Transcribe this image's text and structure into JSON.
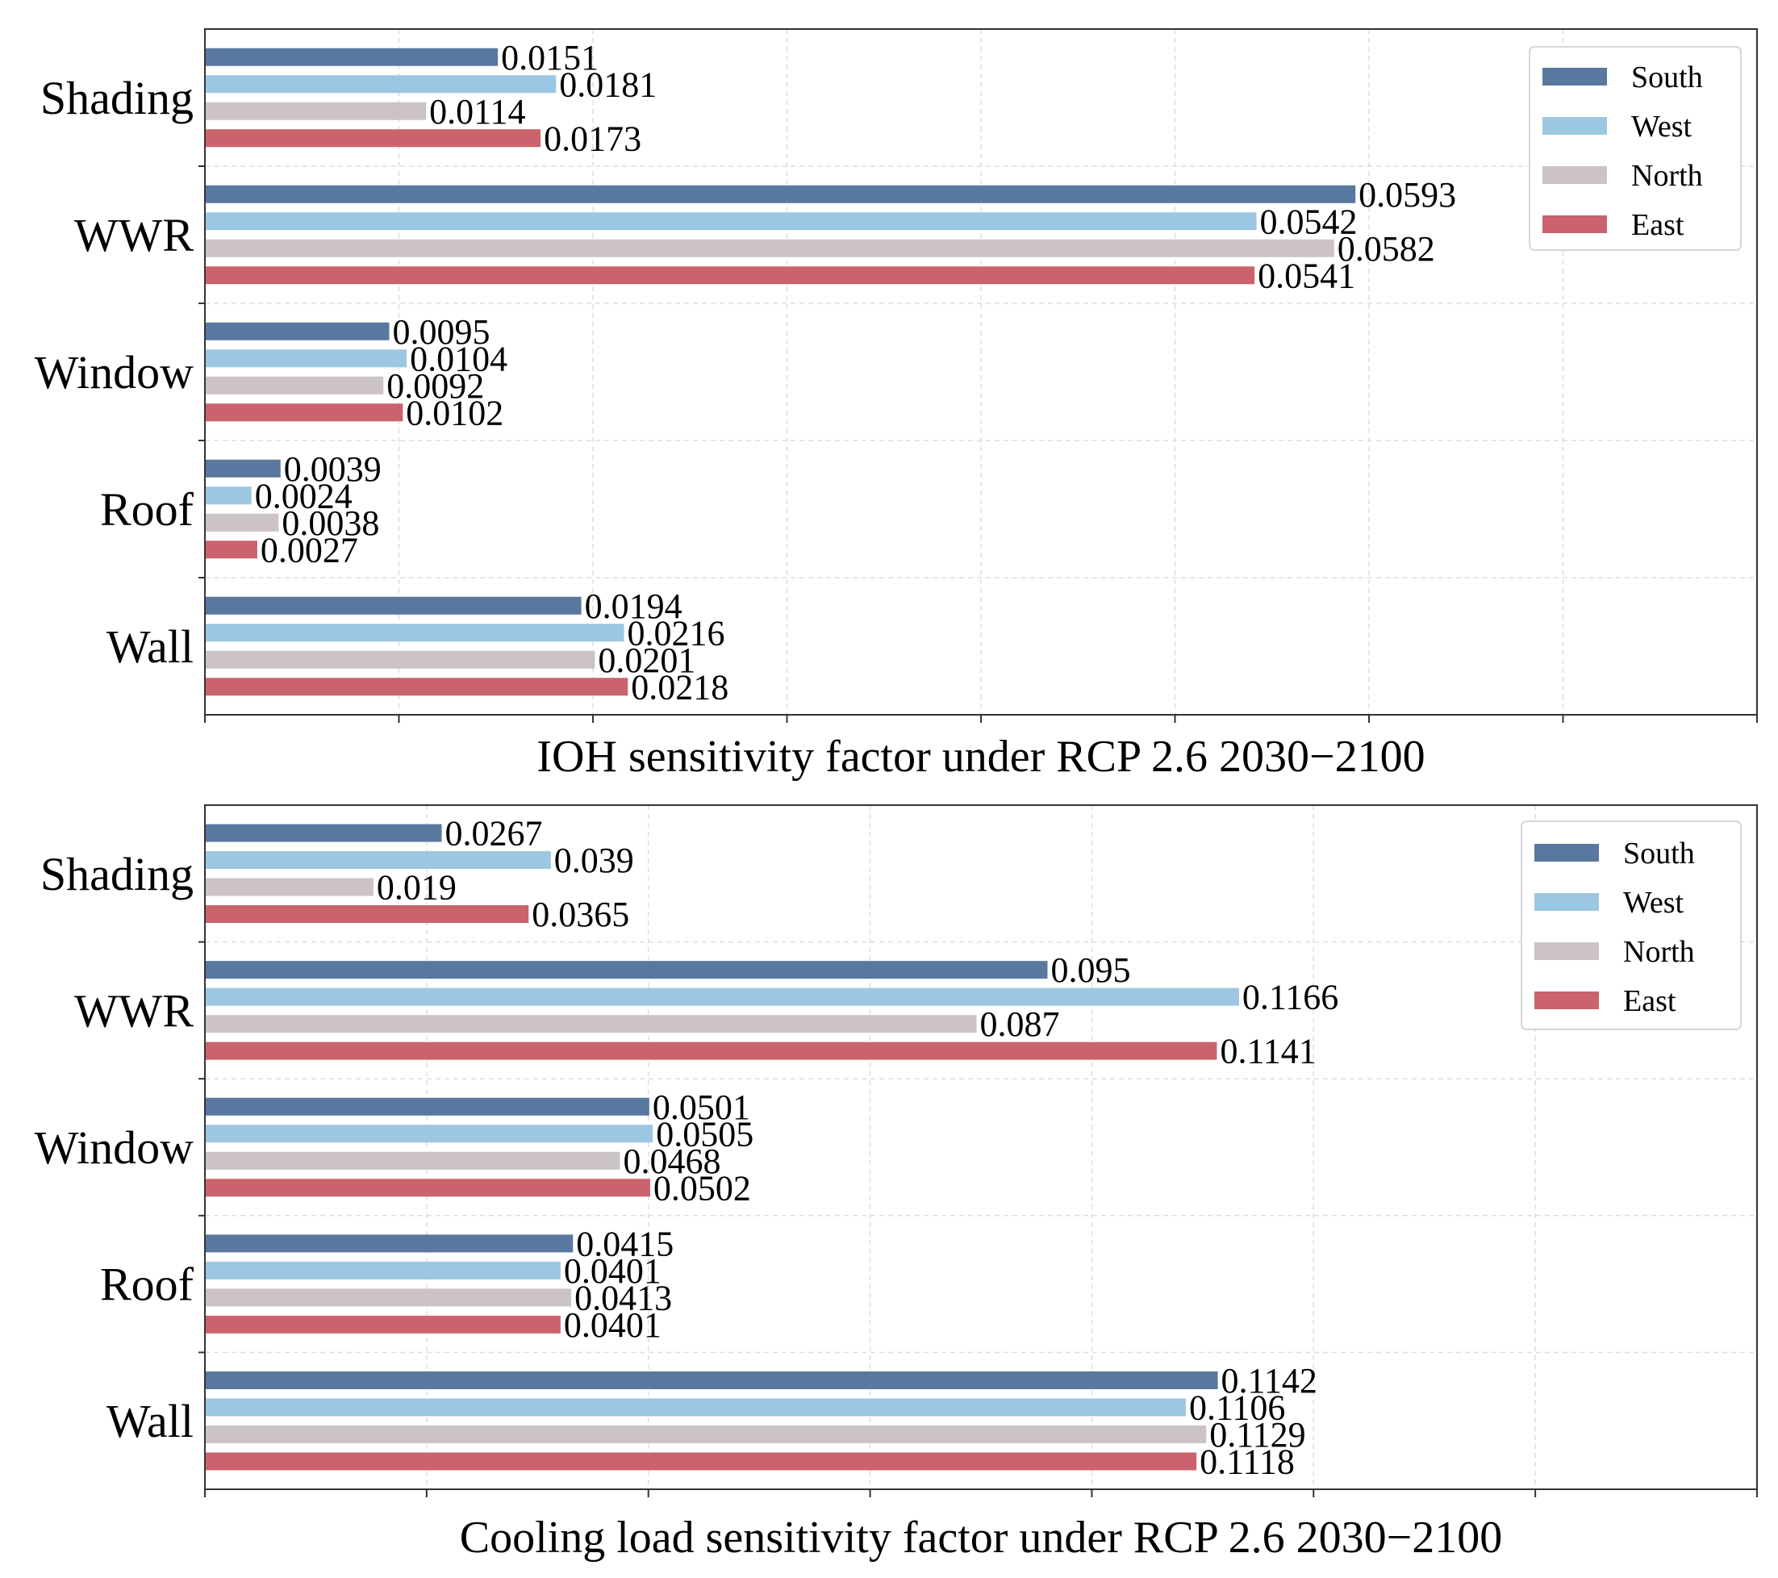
{
  "colors": {
    "South": "#58789f",
    "West": "#9cc7e2",
    "North": "#ccc3c5",
    "East": "#ca636c"
  },
  "chart_data": [
    {
      "type": "bar",
      "orientation": "horizontal",
      "title": "IOH sensitivity factor under RCP 2.6  2030−2100",
      "categories": [
        "Shading",
        "WWR",
        "Window",
        "Roof",
        "Wall"
      ],
      "series": [
        {
          "name": "South",
          "values": [
            0.0151,
            0.0593,
            0.0095,
            0.0039,
            0.0194
          ]
        },
        {
          "name": "West",
          "values": [
            0.0181,
            0.0542,
            0.0104,
            0.0024,
            0.0216
          ]
        },
        {
          "name": "North",
          "values": [
            0.0114,
            0.0582,
            0.0092,
            0.0038,
            0.0201
          ]
        },
        {
          "name": "East",
          "values": [
            0.0173,
            0.0541,
            0.0102,
            0.0027,
            0.0218
          ]
        }
      ],
      "value_labels": [
        [
          "0.0151",
          "0.0593",
          "0.0095",
          "0.0039",
          "0.0194"
        ],
        [
          "0.0181",
          "0.0542",
          "0.0104",
          "0.0024",
          "0.0216"
        ],
        [
          "0.0114",
          "0.0582",
          "0.0092",
          "0.0038",
          "0.0201"
        ],
        [
          "0.0173",
          "0.0541",
          "0.0102",
          "0.0027",
          "0.0218"
        ]
      ],
      "xlim": [
        0,
        0.08
      ],
      "xtick_step": 0.01,
      "grid": true,
      "legend": "top-right"
    },
    {
      "type": "bar",
      "orientation": "horizontal",
      "title": "Cooling load sensitivity factor under RCP 2.6  2030−2100",
      "categories": [
        "Shading",
        "WWR",
        "Window",
        "Roof",
        "Wall"
      ],
      "series": [
        {
          "name": "South",
          "values": [
            0.0267,
            0.095,
            0.0501,
            0.0415,
            0.1142
          ]
        },
        {
          "name": "West",
          "values": [
            0.039,
            0.1166,
            0.0505,
            0.0401,
            0.1106
          ]
        },
        {
          "name": "North",
          "values": [
            0.019,
            0.087,
            0.0468,
            0.0413,
            0.1129
          ]
        },
        {
          "name": "East",
          "values": [
            0.0365,
            0.1141,
            0.0502,
            0.0401,
            0.1118
          ]
        }
      ],
      "value_labels": [
        [
          "0.0267",
          "0.095",
          "0.0501",
          "0.0415",
          "0.1142"
        ],
        [
          "0.039",
          "0.1166",
          "0.0505",
          "0.0401",
          "0.1106"
        ],
        [
          "0.019",
          "0.087",
          "0.0468",
          "0.0413",
          "0.1129"
        ],
        [
          "0.0365",
          "0.1141",
          "0.0502",
          "0.0401",
          "0.1118"
        ]
      ],
      "xlim": [
        0,
        0.175
      ],
      "xtick_step": 0.025,
      "grid": true,
      "legend": "top-right"
    }
  ]
}
